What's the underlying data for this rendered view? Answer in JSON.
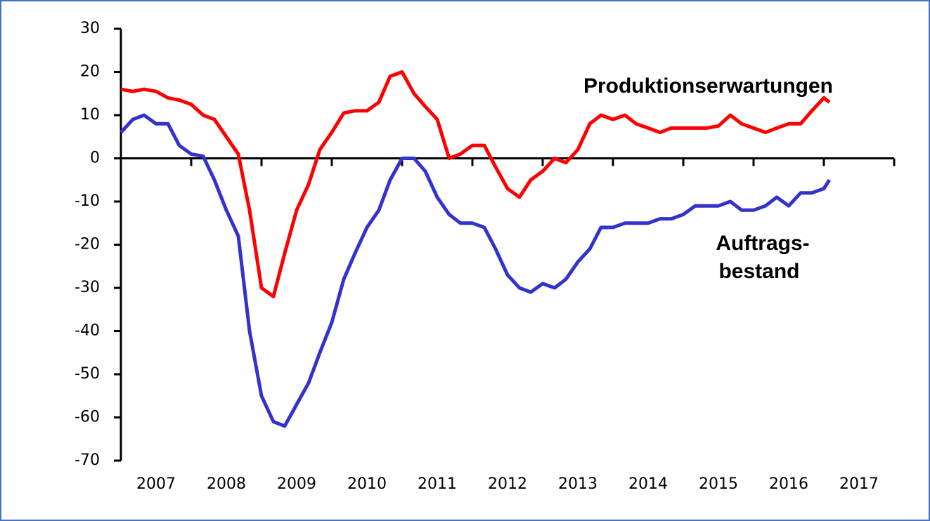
{
  "chart_data": {
    "type": "line",
    "x": [
      2007,
      2007.17,
      2007.33,
      2007.5,
      2007.67,
      2007.83,
      2008,
      2008.17,
      2008.33,
      2008.5,
      2008.67,
      2008.83,
      2009,
      2009.17,
      2009.33,
      2009.5,
      2009.67,
      2009.83,
      2010,
      2010.17,
      2010.33,
      2010.5,
      2010.67,
      2010.83,
      2011,
      2011.17,
      2011.33,
      2011.5,
      2011.67,
      2011.83,
      2012,
      2012.17,
      2012.33,
      2012.5,
      2012.67,
      2012.83,
      2013,
      2013.17,
      2013.33,
      2013.5,
      2013.67,
      2013.83,
      2014,
      2014.17,
      2014.33,
      2014.5,
      2014.67,
      2014.83,
      2015,
      2015.17,
      2015.33,
      2015.5,
      2015.67,
      2015.83,
      2016,
      2016.17,
      2016.33,
      2016.5,
      2016.67,
      2016.83,
      2017,
      2017.08
    ],
    "series": [
      {
        "color": "#ff0000",
        "values": [
          16,
          15.5,
          16,
          15.5,
          14,
          13.5,
          12.5,
          10,
          9,
          5,
          1,
          -12,
          -30,
          -32,
          -22,
          -12,
          -6,
          2,
          6,
          10.5,
          11,
          11,
          13,
          19,
          20,
          15,
          12,
          9,
          0,
          1,
          3,
          3,
          -2,
          -7,
          -9,
          -5,
          -3,
          0,
          -1,
          2,
          8,
          10,
          9,
          10,
          8,
          7,
          6,
          7,
          7,
          7,
          7,
          7.5,
          10,
          8,
          7,
          6,
          7,
          8,
          8,
          11,
          14,
          13
        ]
      },
      {
        "color": "#3333cc",
        "values": [
          6,
          9,
          10,
          8,
          8,
          3,
          1,
          0.5,
          -5,
          -12,
          -18,
          -40,
          -55,
          -61,
          -62,
          -57,
          -52,
          -45,
          -38,
          -28,
          -22,
          -16,
          -12,
          -5,
          0,
          0,
          -3,
          -9,
          -13,
          -15,
          -15,
          -16,
          -21,
          -27,
          -30,
          -31,
          -29,
          -30,
          -28,
          -24,
          -21,
          -16,
          -16,
          -15,
          -15,
          -15,
          -14,
          -14,
          -13,
          -11,
          -11,
          -11,
          -10,
          -12,
          -12,
          -11,
          -9,
          -11,
          -8,
          -8,
          -7,
          -5
        ]
      }
    ],
    "annotations": [
      {
        "text": "Produktionserwartungen",
        "color": "#ff0000"
      },
      {
        "text": "Auftrags-",
        "color": "#3333cc"
      },
      {
        "text": "bestand",
        "color": "#3333cc"
      }
    ],
    "xlim": [
      2007,
      2018
    ],
    "xticks": [
      2007,
      2008,
      2009,
      2010,
      2011,
      2012,
      2013,
      2014,
      2015,
      2016,
      2017,
      2018
    ],
    "xtick_labels": [
      {
        "value": 2007.5,
        "label": "2007"
      },
      {
        "value": 2008.5,
        "label": "2008"
      },
      {
        "value": 2009.5,
        "label": "2009"
      },
      {
        "value": 2010.5,
        "label": "2010"
      },
      {
        "value": 2011.5,
        "label": "2011"
      },
      {
        "value": 2012.5,
        "label": "2012"
      },
      {
        "value": 2013.5,
        "label": "2013"
      },
      {
        "value": 2014.5,
        "label": "2014"
      },
      {
        "value": 2015.5,
        "label": "2015"
      },
      {
        "value": 2016.5,
        "label": "2016"
      },
      {
        "value": 2017.5,
        "label": "2017"
      }
    ],
    "ylim": [
      -70,
      30
    ],
    "yticks": [
      -70,
      -60,
      -50,
      -40,
      -30,
      -20,
      -10,
      0,
      10,
      20,
      30
    ]
  }
}
